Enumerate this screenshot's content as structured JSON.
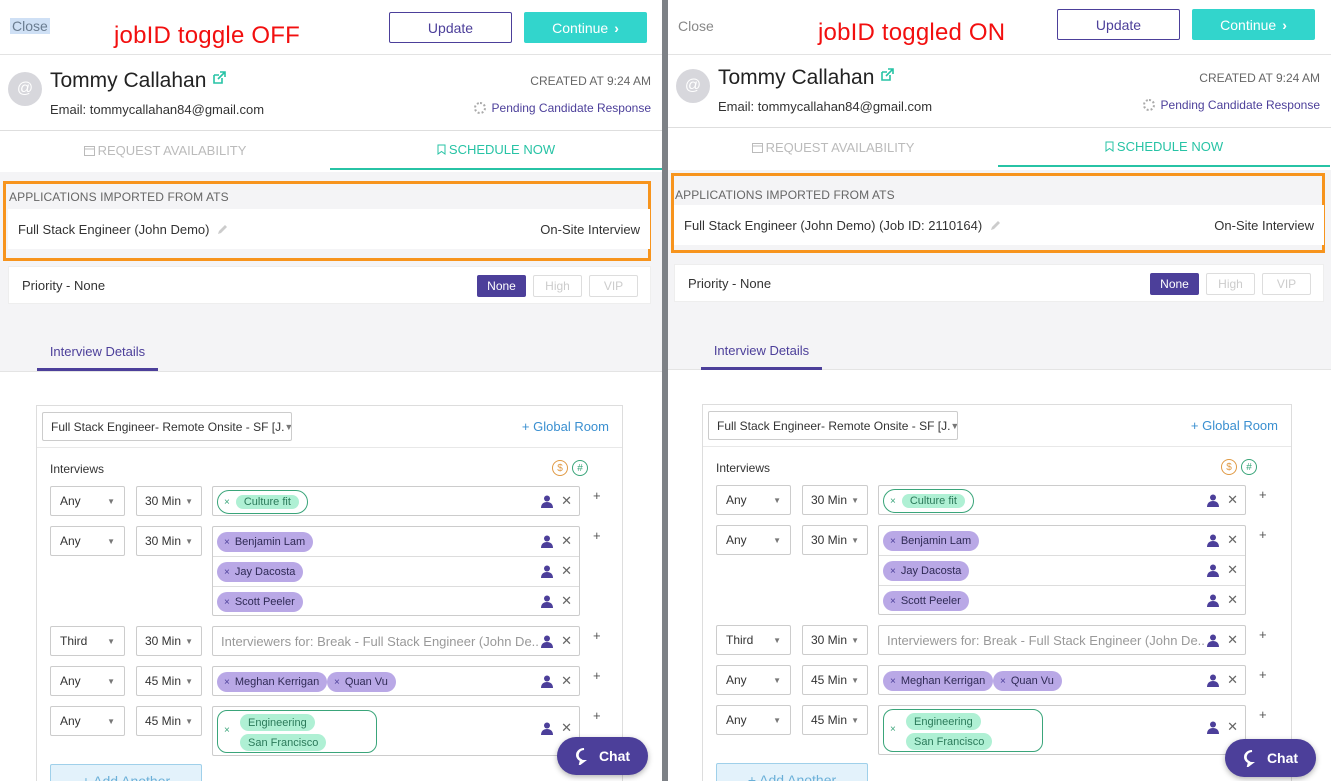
{
  "colors": {
    "accent": "#4c3f9a",
    "teal": "#32d5cc",
    "highlight": "#f7941d",
    "annotation": "#f20f0f"
  },
  "left": {
    "close": "Close",
    "note": "jobID toggle OFF",
    "update": "Update",
    "continue": "Continue",
    "candidate": {
      "name": "Tommy Callahan",
      "email": "Email: tommycallahan84@gmail.com",
      "created": "CREATED AT 9:24 AM",
      "status": "Pending Candidate Response",
      "avatar": "@"
    },
    "tabs": {
      "request": "REQUEST AVAILABILITY",
      "schedule": "SCHEDULE NOW"
    },
    "apps": {
      "title": "APPLICATIONS IMPORTED FROM ATS",
      "job": "Full Stack Engineer (John Demo)",
      "stage": "On-Site Interview"
    },
    "priority": {
      "label": "Priority - None",
      "none": "None",
      "high": "High",
      "vip": "VIP"
    },
    "details_tab": "Interview Details",
    "plan": "Full Stack Engineer- Remote Onsite - SF [J.",
    "global_room": "+ Global Room",
    "interviews_label": "Interviews",
    "cost_icon": "$",
    "hash_icon": "#",
    "rows": [
      {
        "who": "Any",
        "dur": "30 Min",
        "tag": "Culture fit"
      },
      {
        "who": "Any",
        "dur": "30 Min",
        "people": [
          "Benjamin Lam",
          "Jay Dacosta",
          "Scott Peeler"
        ]
      },
      {
        "who": "Third",
        "dur": "30 Min",
        "placeholder": "Interviewers for: Break - Full Stack Engineer (John De..."
      },
      {
        "who": "Any",
        "dur": "45 Min",
        "people": [
          "Meghan Kerrigan",
          "Quan Vu"
        ]
      },
      {
        "who": "Any",
        "dur": "45 Min",
        "tags": [
          "Engineering",
          "San Francisco"
        ]
      }
    ],
    "add_another": "+ Add Another",
    "chat": "Chat"
  },
  "right": {
    "close": "Close",
    "note": "jobID toggled ON",
    "update": "Update",
    "continue": "Continue",
    "candidate": {
      "name": "Tommy Callahan",
      "email": "Email: tommycallahan84@gmail.com",
      "created": "CREATED AT 9:24 AM",
      "status": "Pending Candidate Response",
      "avatar": "@"
    },
    "tabs": {
      "request": "REQUEST AVAILABILITY",
      "schedule": "SCHEDULE NOW"
    },
    "apps": {
      "title": "APPLICATIONS IMPORTED FROM ATS",
      "job": "Full Stack Engineer (John Demo) (Job ID: 2110164)",
      "stage": "On-Site Interview"
    },
    "priority": {
      "label": "Priority - None",
      "none": "None",
      "high": "High",
      "vip": "VIP"
    },
    "details_tab": "Interview Details",
    "plan": "Full Stack Engineer- Remote Onsite - SF [J.",
    "global_room": "+ Global Room",
    "interviews_label": "Interviews",
    "cost_icon": "$",
    "hash_icon": "#",
    "rows": [
      {
        "who": "Any",
        "dur": "30 Min",
        "tag": "Culture fit"
      },
      {
        "who": "Any",
        "dur": "30 Min",
        "people": [
          "Benjamin Lam",
          "Jay Dacosta",
          "Scott Peeler"
        ]
      },
      {
        "who": "Third",
        "dur": "30 Min",
        "placeholder": "Interviewers for: Break - Full Stack Engineer (John De..."
      },
      {
        "who": "Any",
        "dur": "45 Min",
        "people": [
          "Meghan Kerrigan",
          "Quan Vu"
        ]
      },
      {
        "who": "Any",
        "dur": "45 Min",
        "tags": [
          "Engineering",
          "San Francisco"
        ]
      }
    ],
    "add_another": "+ Add Another",
    "chat": "Chat"
  }
}
